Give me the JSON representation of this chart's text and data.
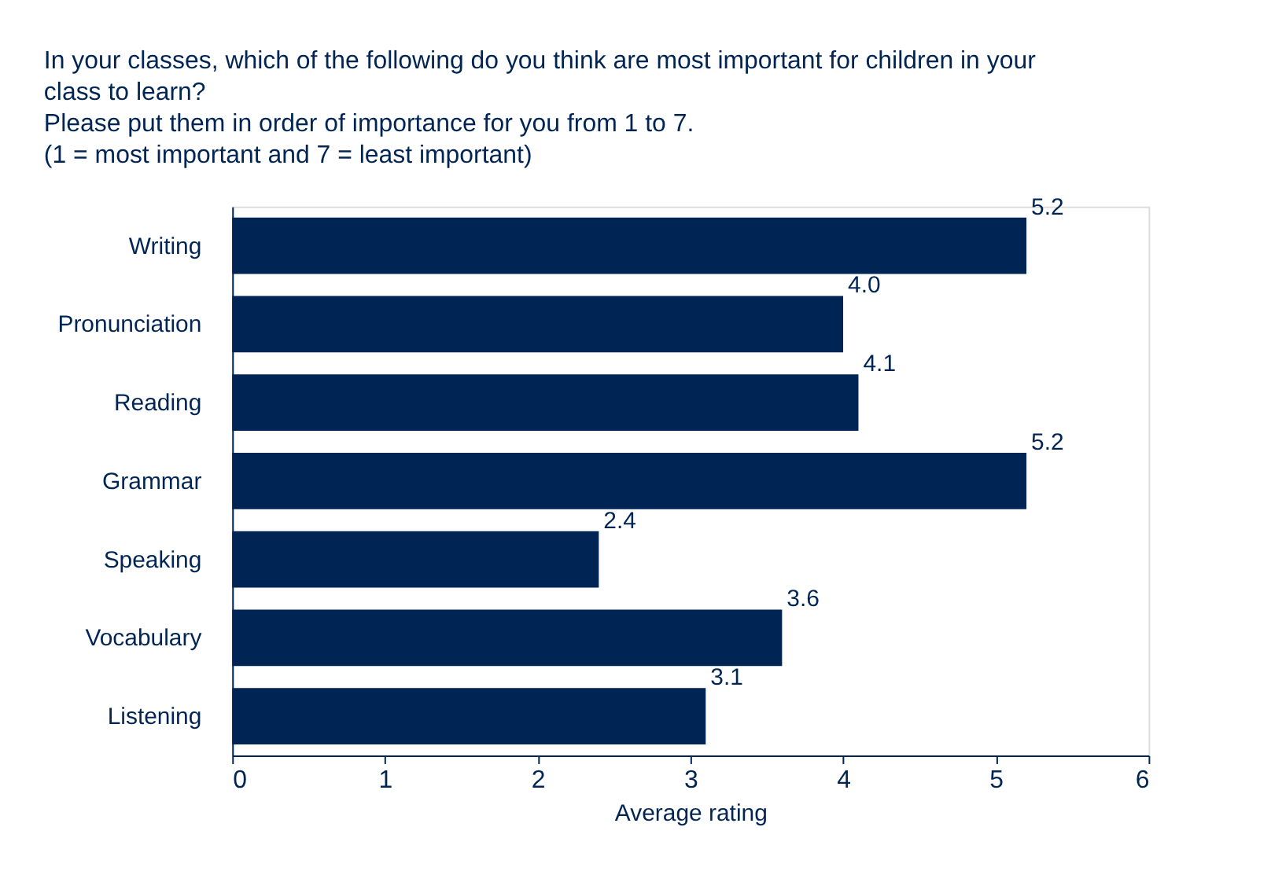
{
  "chart_data": {
    "type": "bar",
    "orientation": "horizontal",
    "title": "In your classes, which of the following do you think are most important for children in your\nclass to learn?\nPlease put them in order of importance for you from 1 to 7.\n(1 = most important and 7 = least important)",
    "xlabel": "Average rating",
    "categories": [
      "Writing",
      "Pronunciation",
      "Reading",
      "Grammar",
      "Speaking",
      "Vocabulary",
      "Listening"
    ],
    "values": [
      5.2,
      4.0,
      4.1,
      5.2,
      2.4,
      3.6,
      3.1
    ],
    "color": "#002554",
    "xlim": [
      0,
      6
    ],
    "xticks": [
      0,
      1,
      2,
      3,
      4,
      5,
      6
    ],
    "value_labels": [
      "5.2",
      "4.0",
      "4.1",
      "5.2",
      "2.4",
      "3.6",
      "3.1"
    ],
    "grid": false
  }
}
